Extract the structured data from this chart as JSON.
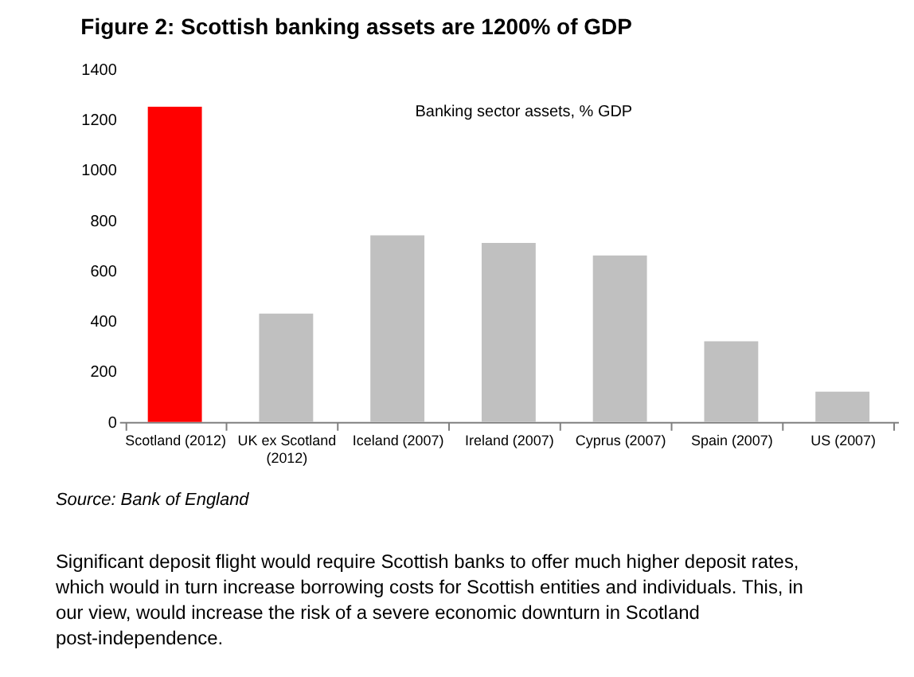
{
  "chart_data": {
    "type": "bar",
    "title": "Figure 2: Scottish banking assets are 1200% of GDP",
    "categories": [
      "Scotland (2012)",
      "UK ex Scotland (2012)",
      "Iceland (2007)",
      "Ireland (2007)",
      "Cyprus (2007)",
      "Spain (2007)",
      "US (2007)"
    ],
    "values": [
      1250,
      430,
      740,
      710,
      660,
      320,
      120
    ],
    "colors": [
      "#ff0000",
      "#c0c0c0",
      "#c0c0c0",
      "#c0c0c0",
      "#c0c0c0",
      "#c0c0c0",
      "#c0c0c0"
    ],
    "ylim": [
      0,
      1400
    ],
    "yticks": [
      0,
      200,
      400,
      600,
      800,
      1000,
      1200,
      1400
    ],
    "grid": false,
    "annotations": [
      "Banking sector assets, % GDP",
      "Source: Bank of England",
      "Significant deposit flight would require Scottish banks to offer much higher deposit rates, which would in turn increase borrowing costs for Scottish entities and individuals. This, in our view, would increase the risk of a severe economic downturn in Scotland post-independence."
    ]
  }
}
